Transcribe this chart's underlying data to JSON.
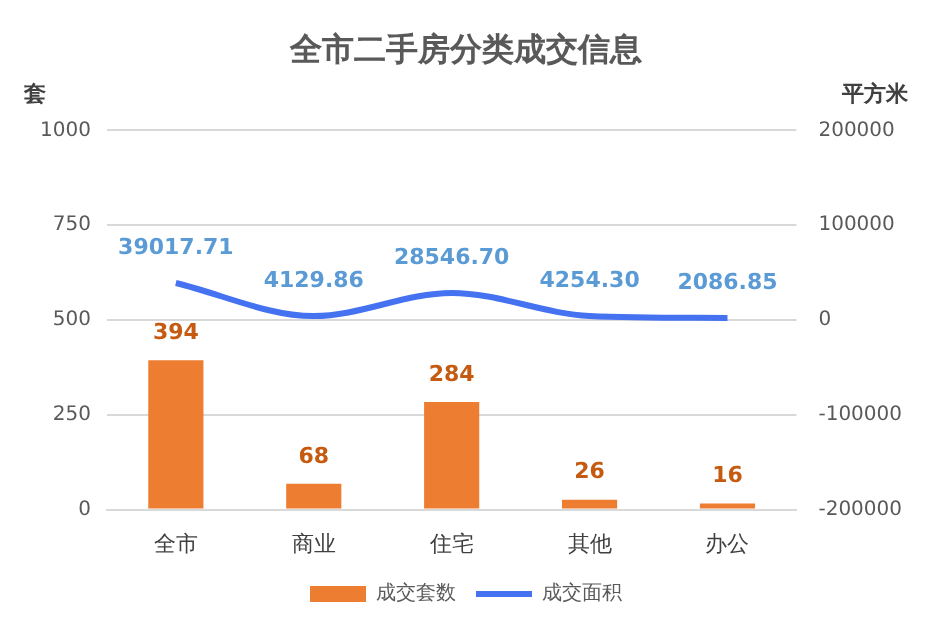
{
  "chart_data": {
    "type": "bar",
    "title": "全市二手房分类成交信息",
    "ylabel": "套",
    "y2label": "平方米",
    "categories": [
      "全市",
      "商业",
      "住宅",
      "其他",
      "办公"
    ],
    "series": [
      {
        "name": "成交套数",
        "color": "#ed7d31",
        "values": [
          394,
          68,
          284,
          26,
          16
        ],
        "value_labels": [
          "394",
          "68",
          "284",
          "26",
          "16"
        ]
      },
      {
        "name": "成交面积",
        "type": "line",
        "axis": "y2",
        "color": "#4472f0",
        "marker": "none",
        "line_style": "solid",
        "values": [
          39017.71,
          4129.86,
          28546.7,
          4254.3,
          2086.85
        ],
        "value_labels": [
          "39017.71",
          "4129.86",
          "28546.70",
          "4254.30",
          "2086.85"
        ]
      }
    ],
    "ylim": [
      0,
      1000
    ],
    "yticks": [
      0,
      250,
      500,
      750,
      1000
    ],
    "y2lim": [
      -200000,
      200000
    ],
    "y2ticks": [
      -200000,
      -100000,
      0,
      100000,
      200000
    ],
    "grid": "y",
    "legend": "bottom"
  }
}
